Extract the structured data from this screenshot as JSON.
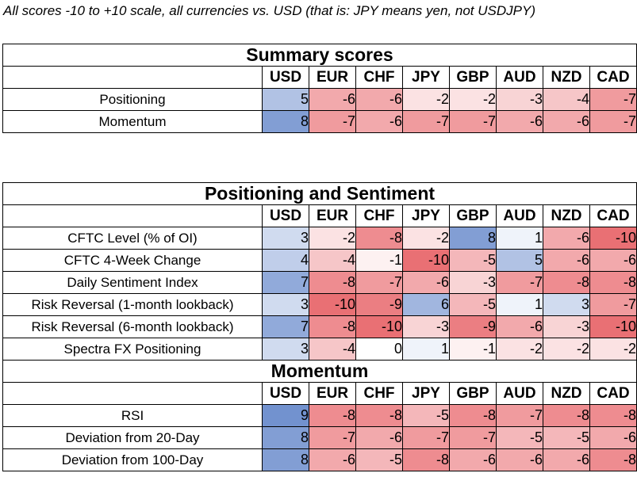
{
  "note": "All scores -10 to +10 scale, all currencies vs. USD (that is: JPY means yen, not USDJPY)",
  "currencies": [
    "USD",
    "EUR",
    "CHF",
    "JPY",
    "GBP",
    "AUD",
    "NZD",
    "CAD"
  ],
  "colors": {
    "positive": "#5a7fc7",
    "negative": "#e8686d",
    "neutral": "#ffffff"
  },
  "summary": {
    "title": "Summary scores",
    "rows": [
      {
        "label": "Positioning",
        "values": [
          5,
          -6,
          -6,
          -2,
          -2,
          -3,
          -4,
          -7
        ]
      },
      {
        "label": "Momentum",
        "values": [
          8,
          -7,
          -6,
          -7,
          -7,
          -6,
          -6,
          -7
        ]
      }
    ]
  },
  "positioning": {
    "title": "Positioning and Sentiment",
    "rows": [
      {
        "label": "CFTC Level (% of OI)",
        "values": [
          3,
          -2,
          -8,
          -2,
          8,
          1,
          -6,
          -10
        ]
      },
      {
        "label": "CFTC 4-Week Change",
        "values": [
          4,
          -4,
          -1,
          -10,
          -5,
          5,
          -6,
          -6
        ]
      },
      {
        "label": "Daily Sentiment Index",
        "values": [
          7,
          -8,
          -7,
          -6,
          -3,
          -7,
          -8,
          -8
        ]
      },
      {
        "label": "Risk Reversal (1-month lookback)",
        "values": [
          3,
          -10,
          -9,
          6,
          -5,
          1,
          3,
          -7
        ]
      },
      {
        "label": "Risk Reversal (6-month lookback)",
        "values": [
          7,
          -8,
          -10,
          -3,
          -9,
          -6,
          -3,
          -10
        ]
      },
      {
        "label": "Spectra FX Positioning",
        "values": [
          3,
          -4,
          0,
          1,
          -1,
          -2,
          -2,
          -2
        ]
      }
    ]
  },
  "momentum": {
    "title": "Momentum",
    "rows": [
      {
        "label": "RSI",
        "values": [
          9,
          -8,
          -8,
          -5,
          -8,
          -7,
          -8,
          -8
        ]
      },
      {
        "label": "Deviation from 20-Day",
        "values": [
          8,
          -7,
          -6,
          -7,
          -7,
          -5,
          -5,
          -6
        ]
      },
      {
        "label": "Deviation from 100-Day",
        "values": [
          8,
          -6,
          -5,
          -8,
          -6,
          -6,
          -6,
          -8
        ]
      }
    ]
  }
}
